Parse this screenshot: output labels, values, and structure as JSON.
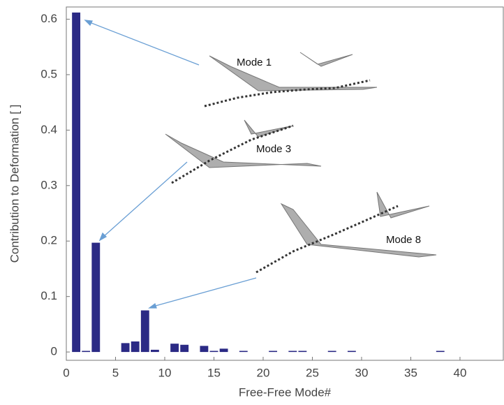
{
  "chart_data": {
    "type": "bar",
    "x_label": "Free-Free Mode#",
    "y_label": "Contribution to Deformation [ ]",
    "x": [
      1,
      2,
      3,
      6,
      7,
      8,
      9,
      11,
      12,
      14,
      15,
      16,
      18,
      21,
      23,
      24,
      27,
      29,
      38
    ],
    "values": [
      0.612,
      0.002,
      0.197,
      0.016,
      0.019,
      0.075,
      0.004,
      0.015,
      0.013,
      0.011,
      0.002,
      0.006,
      0.002,
      0.002,
      0.002,
      0.002,
      0.002,
      0.002,
      0.002
    ],
    "color": "#2b2a85",
    "xlim": [
      0,
      44.4
    ],
    "ylim": [
      -0.015,
      0.622
    ],
    "xticks": [
      0,
      5,
      10,
      15,
      20,
      25,
      30,
      35,
      40
    ],
    "yticks": [
      0,
      0.1,
      0.2,
      0.3,
      0.4,
      0.5,
      0.6
    ],
    "annotations": [
      "Mode 1",
      "Mode 3",
      "Mode 8"
    ]
  }
}
